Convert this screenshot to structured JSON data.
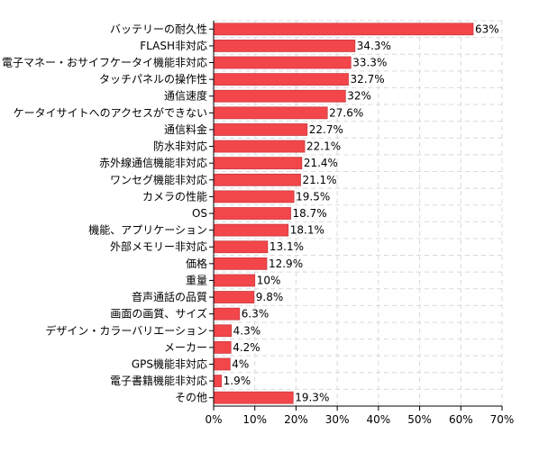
{
  "chart_data": {
    "type": "bar",
    "orientation": "horizontal",
    "categories": [
      "バッテリーの耐久性",
      "FLASH非対応",
      "電子マネー・おサイフケータイ機能非対応",
      "タッチパネルの操作性",
      "通信速度",
      "ケータイサイトへのアクセスができない",
      "通信料金",
      "防水非対応",
      "赤外線通信機能非対応",
      "ワンセグ機能非対応",
      "カメラの性能",
      "OS",
      "機能、アプリケーション",
      "外部メモリー非対応",
      "価格",
      "重量",
      "音声通話の品質",
      "画面の画質、サイズ",
      "デザイン・カラーバリエーション",
      "メーカー",
      "GPS機能非対応",
      "電子書籍機能非対応",
      "その他"
    ],
    "values": [
      63,
      34.3,
      33.3,
      32.7,
      32,
      27.6,
      22.7,
      22.1,
      21.4,
      21.1,
      19.5,
      18.7,
      18.1,
      13.1,
      12.9,
      10,
      9.8,
      6.3,
      4.3,
      4.2,
      4,
      1.9,
      19.3
    ],
    "value_labels": [
      "63%",
      "34.3%",
      "33.3%",
      "32.7%",
      "32%",
      "27.6%",
      "22.7%",
      "22.1%",
      "21.4%",
      "21.1%",
      "19.5%",
      "18.7%",
      "18.1%",
      "13.1%",
      "12.9%",
      "10%",
      "9.8%",
      "6.3%",
      "4.3%",
      "4.2%",
      "4%",
      "1.9%",
      "19.3%"
    ],
    "x_ticks": [
      "0%",
      "10%",
      "20%",
      "30%",
      "40%",
      "50%",
      "60%",
      "70%"
    ],
    "xlim": [
      0,
      70
    ],
    "grid": true,
    "bar_color": "#f2464b",
    "bar_edge_color": "#c93a3e",
    "grid_color": "#d9d9d9",
    "title": "",
    "xlabel": "",
    "ylabel": ""
  }
}
